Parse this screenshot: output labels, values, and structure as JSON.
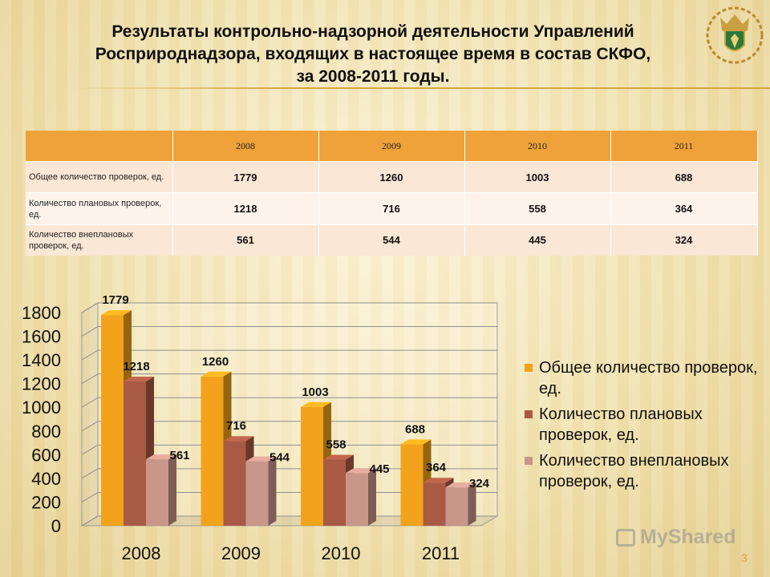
{
  "title_lines": [
    "Результаты контрольно-надзорной деятельности Управлений",
    "Росприроднадзора, входящих в настоящее время в состав СКФО,",
    "за 2008-2011 годы."
  ],
  "table": {
    "header": [
      "",
      "2008",
      "2009",
      "2010",
      "2011"
    ],
    "rows": [
      {
        "label": "Общее количество проверок, ед.",
        "values": [
          "1779",
          "1260",
          "1003",
          "688"
        ]
      },
      {
        "label": "Количество плановых проверок, ед.",
        "values": [
          "1218",
          "716",
          "558",
          "364"
        ]
      },
      {
        "label": "Количество внеплановых проверок, ед.",
        "values": [
          "561",
          "544",
          "445",
          "324"
        ]
      }
    ]
  },
  "chart_data": {
    "type": "bar",
    "categories": [
      "2008",
      "2009",
      "2010",
      "2011"
    ],
    "series": [
      {
        "name": "Общее количество проверок, ед.",
        "values": [
          1779,
          1260,
          1003,
          688
        ],
        "color": "#f2a31b"
      },
      {
        "name": "Количество плановых проверок, ед.",
        "values": [
          1218,
          716,
          558,
          364
        ],
        "color": "#a95a44"
      },
      {
        "name": "Количество внеплановых проверок, ед.",
        "values": [
          561,
          544,
          445,
          324
        ],
        "color": "#c9968a"
      }
    ],
    "ylim": [
      0,
      1800
    ],
    "yticks": [
      0,
      200,
      400,
      600,
      800,
      1000,
      1200,
      1400,
      1600,
      1800
    ],
    "grid": true,
    "style": "3d-column",
    "legend_position": "right"
  },
  "watermark": "MyShared",
  "page_number": "3"
}
